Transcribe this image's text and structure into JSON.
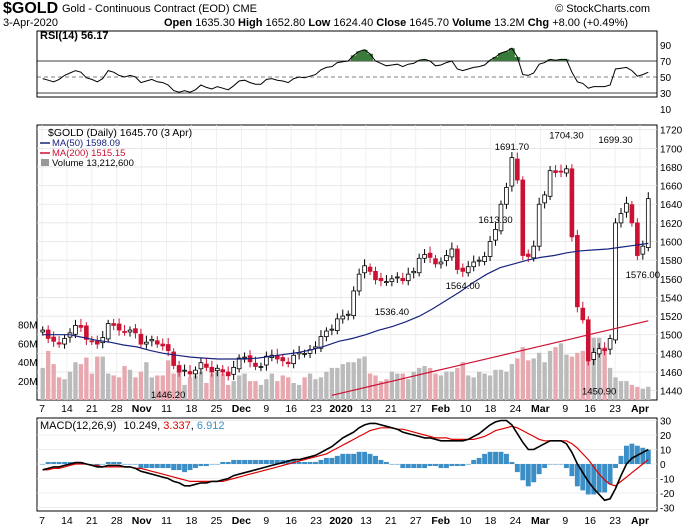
{
  "header": {
    "symbol": "$GOLD",
    "subtitle": "Gold - Continuous Contract (EOD)  CME",
    "copyright": "© StockCharts.com",
    "date": "3-Apr-2020",
    "ohlc": {
      "open_label": "Open",
      "open": "1635.30",
      "high_label": "High",
      "high": "1652.80",
      "low_label": "Low",
      "low": "1624.40",
      "close_label": "Close",
      "close": "1645.70",
      "volume_label": "Volume",
      "volume": "13.2M",
      "chg_label": "Chg",
      "chg": "+8.00 (+0.49%)"
    }
  },
  "colors": {
    "up": "#000000",
    "down": "#cc1133",
    "ma50": "#1a237e",
    "ma200": "#cc1133",
    "volume_up": "#bbbbbb",
    "volume_down": "#e8a8b0",
    "macd_line": "#000000",
    "signal_line": "#dd0000",
    "histogram": "#3c8fc6",
    "rsi_line": "#000000",
    "rsi_fill": "#3a7a3a"
  },
  "rsi_panel": {
    "label": "RSI(14) 56.17",
    "ticks": [
      "90",
      "70",
      "50",
      "30",
      "10"
    ]
  },
  "price_panel": {
    "legend_title": "$GOLD (Daily) 1645.70 (3 Apr)",
    "legend_ma50": "MA(50) 1598.09",
    "legend_ma200": "MA(200) 1515.15",
    "legend_volume": "Volume 13,212,600",
    "annotations": [
      "1691.70",
      "1704.30",
      "1699.30",
      "1613.30",
      "1536.40",
      "1564.00",
      "1576.00",
      "1446.20",
      "1450.90"
    ],
    "volume_ticks": [
      "80M",
      "60M",
      "40M",
      "20M"
    ]
  },
  "macd_panel": {
    "label_prefix": "MACD(12,26,9)",
    "macd": "10.249",
    "signal": "3.337",
    "hist": "6.912",
    "ticks": [
      "30",
      "20",
      "10",
      "0",
      "-10",
      "-20",
      "-30"
    ]
  },
  "chart_data": {
    "type": "line",
    "title": "$GOLD (Daily) 1645.70 (3 Apr)",
    "x_labels": [
      "7",
      "14",
      "21",
      "28",
      "Nov",
      "11",
      "18",
      "25",
      "Dec",
      "9",
      "16",
      "23",
      "2020",
      "13",
      "21",
      "27",
      "Feb",
      "10",
      "18",
      "24",
      "Mar",
      "9",
      "16",
      "23",
      "Apr"
    ],
    "y_ticks": [
      1720,
      1700,
      1680,
      1660,
      1640,
      1620,
      1600,
      1580,
      1560,
      1540,
      1520,
      1500,
      1480,
      1460,
      1440
    ],
    "ylim": [
      1430,
      1725
    ],
    "grid": true,
    "series": [
      {
        "name": "$GOLD",
        "kind": "close",
        "values": [
          1505,
          1496,
          1493,
          1490,
          1496,
          1502,
          1510,
          1508,
          1495,
          1493,
          1490,
          1497,
          1512,
          1510,
          1505,
          1503,
          1505,
          1502,
          1490,
          1492,
          1495,
          1490,
          1488,
          1483,
          1467,
          1460,
          1462,
          1458,
          1462,
          1470,
          1465,
          1460,
          1464,
          1460,
          1456,
          1465,
          1475,
          1476,
          1471,
          1466,
          1466,
          1477,
          1478,
          1474,
          1472,
          1469,
          1478,
          1481,
          1480,
          1484,
          1487,
          1498,
          1504,
          1506,
          1517,
          1520,
          1522,
          1547,
          1565,
          1574,
          1568,
          1559,
          1558,
          1557,
          1560,
          1562,
          1558,
          1565,
          1568,
          1582,
          1586,
          1583,
          1576,
          1578,
          1585,
          1592,
          1570,
          1568,
          1573,
          1578,
          1580,
          1584,
          1600,
          1613,
          1640,
          1658,
          1690,
          1666,
          1585,
          1584,
          1595,
          1640,
          1650,
          1676,
          1674,
          1675,
          1678,
          1605,
          1530,
          1516,
          1472,
          1481,
          1485,
          1483,
          1496,
          1620,
          1630,
          1641,
          1620,
          1585,
          1595,
          1646
        ]
      },
      {
        "name": "MA(50)",
        "values": [
          1500,
          1500,
          1500,
          1497,
          1494,
          1492,
          1489,
          1487,
          1483,
          1480,
          1478,
          1476,
          1475,
          1474,
          1474,
          1474,
          1475,
          1477,
          1479,
          1481,
          1484,
          1488,
          1493,
          1496,
          1500,
          1505,
          1509,
          1514,
          1520,
          1528,
          1537,
          1546,
          1556,
          1565,
          1572,
          1576,
          1580,
          1583,
          1585,
          1588,
          1590,
          1591,
          1592,
          1594,
          1596,
          1598
        ]
      },
      {
        "name": "MA(200)",
        "values": [
          1435,
          1440,
          1445,
          1450,
          1455,
          1460,
          1465,
          1470,
          1475,
          1480,
          1485,
          1490,
          1495,
          1500,
          1505,
          1510,
          1515
        ]
      },
      {
        "name": "Volume",
        "unit": "M",
        "values": [
          34,
          52,
          38,
          24,
          22,
          30,
          40,
          38,
          45,
          28,
          46,
          46,
          28,
          26,
          24,
          36,
          32,
          24,
          30,
          40,
          24,
          26,
          26,
          42,
          28,
          30,
          16,
          24,
          26,
          30,
          18,
          28,
          30,
          28,
          16,
          20,
          26,
          28,
          20,
          20,
          16,
          22,
          28,
          20,
          26,
          24,
          18,
          16,
          24,
          28,
          22,
          24,
          30,
          34,
          34,
          38,
          40,
          40,
          44,
          46,
          28,
          26,
          20,
          22,
          30,
          28,
          28,
          22,
          30,
          34,
          36,
          34,
          28,
          26,
          30,
          30,
          34,
          40,
          26,
          24,
          30,
          28,
          26,
          32,
          32,
          30,
          38,
          44,
          56,
          42,
          44,
          50,
          40,
          52,
          56,
          60,
          48,
          46,
          50,
          52,
          58,
          66,
          66,
          56,
          34,
          24,
          20,
          20,
          16,
          14,
          12,
          14
        ]
      },
      {
        "name": "RSI(14)",
        "values": [
          48,
          46,
          44,
          47,
          52,
          55,
          58,
          56,
          49,
          47,
          44,
          48,
          58,
          56,
          52,
          50,
          52,
          50,
          43,
          45,
          47,
          44,
          43,
          40,
          33,
          31,
          33,
          31,
          34,
          40,
          37,
          35,
          38,
          36,
          34,
          39,
          45,
          46,
          43,
          41,
          41,
          47,
          48,
          46,
          45,
          43,
          48,
          50,
          49,
          51,
          53,
          59,
          62,
          63,
          68,
          69,
          70,
          77,
          82,
          84,
          79,
          70,
          67,
          64,
          65,
          66,
          63,
          66,
          67,
          71,
          72,
          70,
          64,
          65,
          68,
          70,
          60,
          58,
          60,
          62,
          63,
          65,
          71,
          75,
          80,
          82,
          86,
          75,
          53,
          52,
          55,
          66,
          68,
          72,
          71,
          72,
          72,
          56,
          44,
          42,
          36,
          38,
          38,
          38,
          40,
          60,
          61,
          62,
          58,
          51,
          53,
          56
        ]
      },
      {
        "name": "MACD",
        "values": [
          -4,
          -3,
          -2,
          -2,
          -1,
          0,
          1,
          1,
          0,
          -1,
          -2,
          -2,
          -1,
          -1,
          -1,
          -2,
          -2,
          -3,
          -5,
          -6,
          -7,
          -8,
          -9,
          -10,
          -12,
          -13,
          -15,
          -15,
          -14,
          -13,
          -13,
          -12,
          -12,
          -11,
          -10,
          -8,
          -7,
          -6,
          -5,
          -4,
          -3,
          -2,
          -1,
          0,
          1,
          2,
          3,
          3,
          4,
          5,
          6,
          8,
          10,
          12,
          15,
          18,
          20,
          22,
          25,
          27,
          28,
          28,
          27,
          26,
          25,
          24,
          22,
          21,
          20,
          19,
          18,
          18,
          17,
          16,
          16,
          16,
          16,
          16,
          17,
          19,
          21,
          24,
          27,
          29,
          30,
          30,
          27,
          21,
          15,
          10,
          10,
          12,
          14,
          16,
          16,
          16,
          14,
          8,
          0,
          -6,
          -12,
          -17,
          -21,
          -25,
          -24,
          -17,
          -8,
          0,
          4,
          6,
          8,
          10
        ]
      },
      {
        "name": "Signal",
        "values": [
          -4,
          -4,
          -3,
          -3,
          -2,
          -1,
          0,
          0,
          0,
          -1,
          -1,
          -2,
          -2,
          -2,
          -2,
          -2,
          -2,
          -3,
          -3,
          -4,
          -5,
          -6,
          -7,
          -8,
          -9,
          -10,
          -11,
          -12,
          -12,
          -12,
          -12,
          -12,
          -12,
          -12,
          -11,
          -10,
          -9,
          -8,
          -7,
          -6,
          -5,
          -4,
          -3,
          -2,
          -1,
          0,
          1,
          2,
          3,
          4,
          5,
          6,
          7,
          9,
          11,
          13,
          15,
          17,
          19,
          21,
          23,
          24,
          25,
          25,
          25,
          24,
          24,
          23,
          22,
          21,
          20,
          19,
          18,
          18,
          18,
          17,
          17,
          17,
          17,
          17,
          18,
          19,
          21,
          23,
          24,
          25,
          26,
          25,
          23,
          21,
          19,
          17,
          16,
          16,
          16,
          16,
          16,
          14,
          11,
          7,
          3,
          -2,
          -7,
          -11,
          -14,
          -15,
          -12,
          -9,
          -6,
          -3,
          0,
          3
        ]
      }
    ]
  }
}
